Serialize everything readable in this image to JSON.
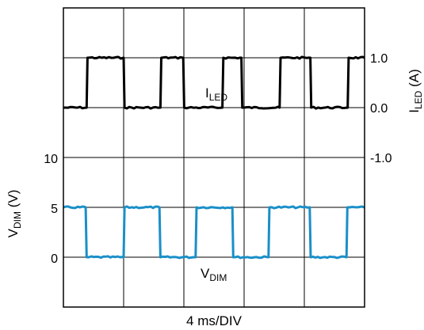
{
  "chart_data": {
    "type": "line",
    "xlabel": "4 ms/DIV",
    "grid": true,
    "left_axis": {
      "label_main": "V",
      "label_sub": "DIM",
      "label_unit": " (V)",
      "ticks": [
        "10",
        "5",
        "0"
      ]
    },
    "right_axis": {
      "label_main": "I",
      "label_sub": "LED",
      "label_unit": " (A)",
      "ticks": [
        "1.0",
        "0.0",
        "-1.0"
      ]
    },
    "series": [
      {
        "name_main": "I",
        "name_sub": "LED",
        "color": "#000000",
        "unit": "A",
        "x": [
          0,
          3.85,
          4.0,
          10.0,
          10.15,
          16.1,
          16.25,
          19.9,
          20.05,
          26.4,
          26.55,
          29.55,
          29.7,
          35.9,
          36.05,
          41.0,
          41.15,
          47.2,
          47.35,
          50.0
        ],
        "y": [
          0,
          0,
          1,
          1,
          0,
          0,
          1,
          1,
          0,
          0,
          1,
          1,
          0,
          0,
          1,
          1,
          0,
          0,
          1,
          1
        ]
      },
      {
        "name_main": "V",
        "name_sub": "DIM",
        "color": "#1a8fc8",
        "unit": "V",
        "x": [
          0,
          3.7,
          3.85,
          10.0,
          10.15,
          15.95,
          16.1,
          21.95,
          22.1,
          28.05,
          28.2,
          34.05,
          34.2,
          40.9,
          41.05,
          47.0,
          47.15,
          50.0
        ],
        "y": [
          5,
          5,
          0,
          0,
          5,
          5,
          0,
          0,
          5,
          5,
          0,
          0,
          5,
          5,
          0,
          0,
          5,
          5
        ]
      }
    ]
  }
}
